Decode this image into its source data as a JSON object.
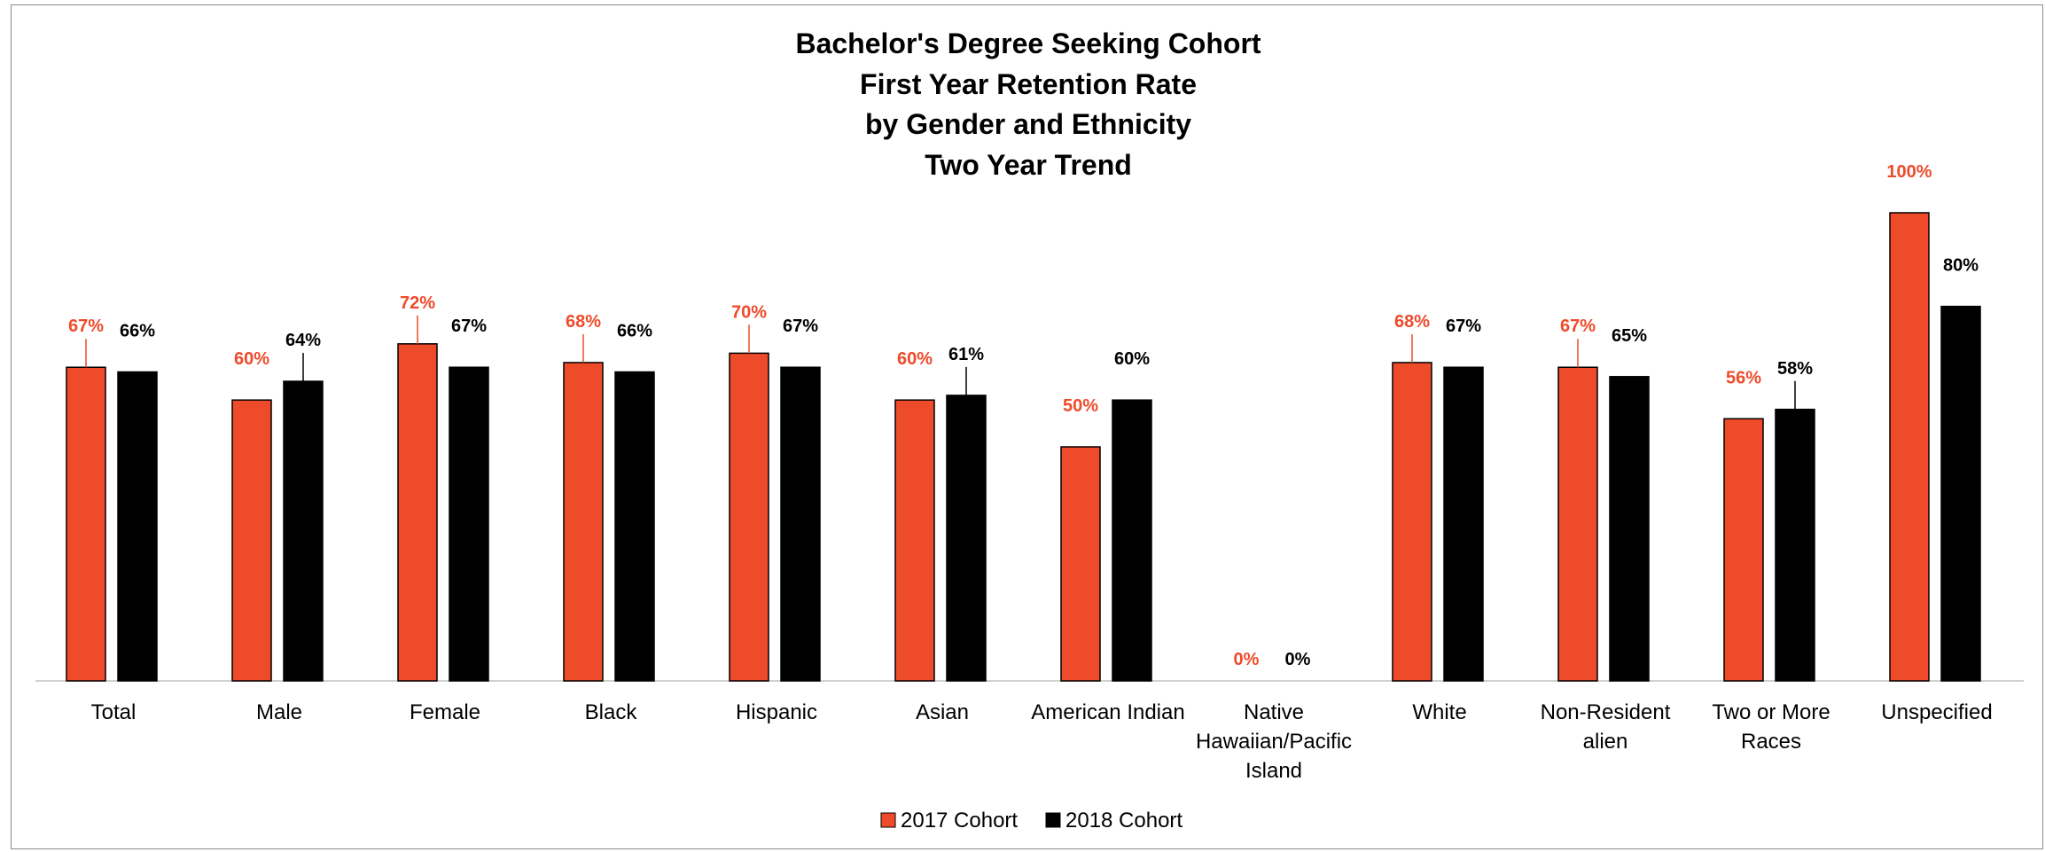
{
  "chart_data": {
    "type": "bar",
    "title_lines": [
      "Bachelor's Degree Seeking Cohort",
      "First Year Retention Rate",
      "by Gender and Ethnicity",
      "Two Year Trend"
    ],
    "categories": [
      [
        "Total"
      ],
      [
        "Male"
      ],
      [
        "Female"
      ],
      [
        "Black"
      ],
      [
        "Hispanic"
      ],
      [
        "Asian"
      ],
      [
        "American Indian"
      ],
      [
        "Native",
        "Hawaiian/Pacific",
        "Island"
      ],
      [
        "White"
      ],
      [
        "Non-Resident",
        "alien"
      ],
      [
        "Two or More",
        "Races"
      ],
      [
        "Unspecified"
      ]
    ],
    "series": [
      {
        "name": "2017 Cohort",
        "color": "#ee4b2b",
        "values": [
          67,
          60,
          72,
          68,
          70,
          60,
          50,
          0,
          68,
          67,
          56,
          100
        ],
        "labels": [
          "67%",
          "60%",
          "72%",
          "68%",
          "70%",
          "60%",
          "50%",
          "0%",
          "68%",
          "67%",
          "56%",
          "100%"
        ]
      },
      {
        "name": "2018 Cohort",
        "color": "#000000",
        "values": [
          66,
          64,
          67,
          66,
          67,
          61,
          60,
          0,
          67,
          65,
          58,
          80
        ],
        "labels": [
          "66%",
          "64%",
          "67%",
          "66%",
          "67%",
          "61%",
          "60%",
          "0%",
          "67%",
          "65%",
          "58%",
          "80%"
        ]
      }
    ],
    "ylim": [
      0,
      100
    ],
    "grid": false,
    "legend_position": "bottom"
  }
}
